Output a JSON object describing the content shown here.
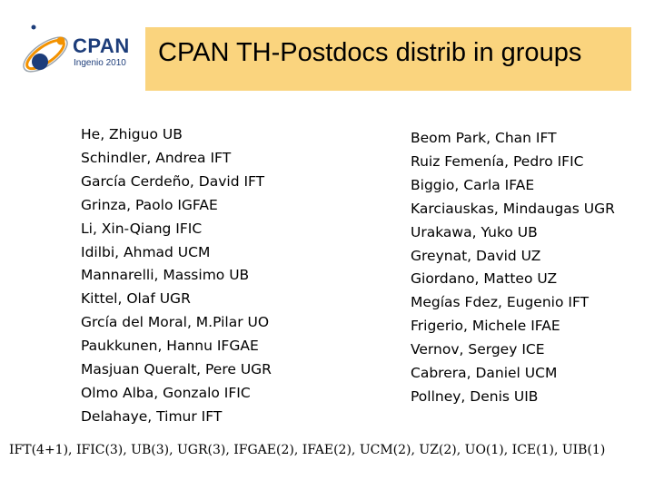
{
  "logo": {
    "name": "CPAN",
    "subtitle": "Ingenio 2010",
    "colors": {
      "navy": "#1d3d7a",
      "orange": "#f39200",
      "gray": "#9aa4ad"
    }
  },
  "header": {
    "title": "CPAN TH-Postdocs  distrib in groups",
    "background": "#fad47e"
  },
  "left_column": [
    "He, Zhiguo UB",
    "Schindler, Andrea IFT",
    "García Cerdeño, David IFT",
    "Grinza, Paolo IGFAE",
    "Li, Xin-Qiang IFIC",
    "Idilbi, Ahmad UCM",
    "Mannarelli, Massimo UB",
    "Kittel, Olaf UGR",
    "Grcía del Moral, M.Pilar UO",
    "Paukkunen, Hannu IFGAE",
    "Masjuan Queralt, Pere UGR",
    "Olmo Alba, Gonzalo IFIC",
    "Delahaye, Timur IFT"
  ],
  "right_column": [
    "Beom Park, Chan IFT",
    "Ruiz Femenía, Pedro IFIC",
    "Biggio, Carla IFAE",
    "Karciauskas, Mindaugas UGR",
    "Urakawa, Yuko UB",
    "Greynat, David UZ",
    "Giordano, Matteo UZ",
    "Megías Fdez, Eugenio IFT",
    "Frigerio, Michele IFAE",
    "Vernov, Sergey ICE",
    "Cabrera, Daniel UCM",
    "Pollney, Denis UIB"
  ],
  "summary": "IFT(4+1), IFIC(3), UB(3), UGR(3), IFGAE(2), IFAE(2), UCM(2), UZ(2), UO(1), ICE(1), UIB(1)"
}
